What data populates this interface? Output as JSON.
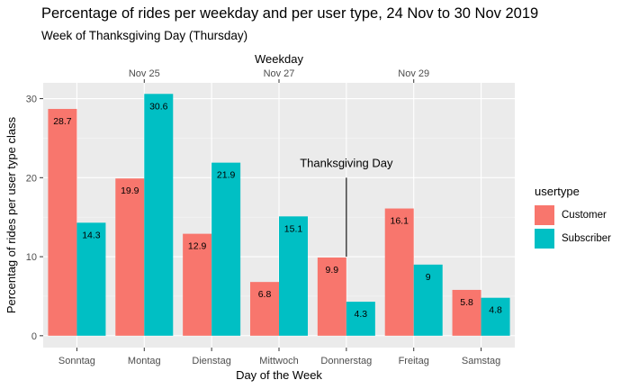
{
  "title": "Percentage of rides per weekday and per user type, 24 Nov to 30 Nov 2019",
  "subtitle": "Week of Thanksgiving Day (Thursday)",
  "legend": {
    "title": "usertype",
    "items": [
      {
        "label": "Customer",
        "color": "#F8766D"
      },
      {
        "label": "Subscriber",
        "color": "#00BFC4"
      }
    ]
  },
  "chart_data": {
    "type": "bar",
    "title": "Percentage of rides per weekday and per user type, 24 Nov to 30 Nov 2019",
    "subtitle": "Week of Thanksgiving Day (Thursday)",
    "xlabel": "Day of the Week",
    "ylabel": "Percentag of rides per user type class",
    "secondary_xlabel": "Weekday",
    "secondary_xticks": [
      "Nov 25",
      "Nov 27",
      "Nov 29"
    ],
    "secondary_xtick_categories": [
      "Montag",
      "Mittwoch",
      "Freitag"
    ],
    "categories": [
      "Sonntag",
      "Montag",
      "Dienstag",
      "Mittwoch",
      "Donnerstag",
      "Freitag",
      "Samstag"
    ],
    "series": [
      {
        "name": "Customer",
        "color": "#F8766D",
        "values": [
          28.7,
          19.9,
          12.9,
          6.8,
          9.9,
          16.1,
          5.8
        ]
      },
      {
        "name": "Subscriber",
        "color": "#00BFC4",
        "values": [
          14.3,
          30.6,
          21.9,
          15.1,
          4.3,
          9,
          4.8
        ]
      }
    ],
    "ylim": [
      -1.5,
      32
    ],
    "yticks": [
      0,
      10,
      20,
      30
    ],
    "annotation": {
      "text": "Thanksgiving Day",
      "category": "Donnerstag",
      "y_top": 20,
      "y_bottom": 10
    },
    "grid": true,
    "legend_position": "right"
  }
}
